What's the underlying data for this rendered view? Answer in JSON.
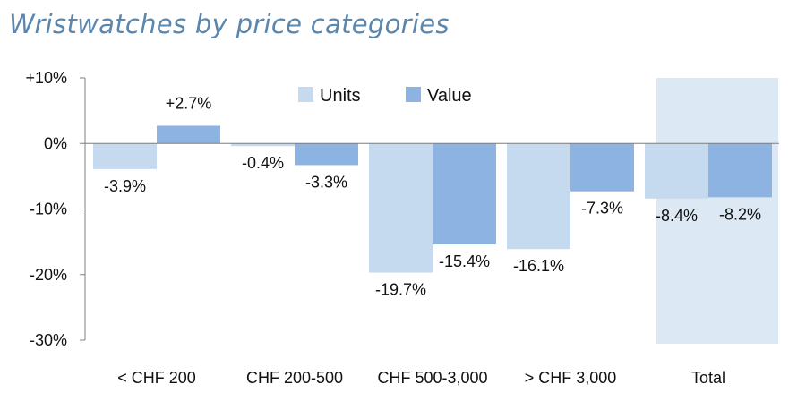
{
  "title": "Wristwatches by price categories",
  "colors": {
    "units": "#c5d9ef",
    "value": "#8db3e2",
    "highlight": "#dce9f5",
    "axis": "#7f7f7f"
  },
  "chart_data": {
    "type": "bar",
    "title": "Wristwatches by price categories",
    "xlabel": "",
    "ylabel": "",
    "categories": [
      "< CHF 200",
      "CHF 200-500",
      "CHF 500-3,000",
      "> CHF 3,000",
      "Total"
    ],
    "series": [
      {
        "name": "Units",
        "values": [
          -3.9,
          -0.4,
          -19.7,
          -16.1,
          -8.4
        ],
        "labels": [
          "-3.9%",
          "-0.4%",
          "-19.7%",
          "-16.1%",
          "-8.4%"
        ]
      },
      {
        "name": "Value",
        "values": [
          2.7,
          -3.3,
          -15.4,
          -7.3,
          -8.2
        ],
        "labels": [
          "+2.7%",
          "-3.3%",
          "-15.4%",
          "-7.3%",
          "-8.2%"
        ]
      }
    ],
    "ylim": [
      -30,
      10
    ],
    "yticks": [
      10,
      0,
      -10,
      -20,
      -30
    ],
    "ytick_labels": [
      "+10%",
      "0%",
      "-10%",
      "-20%",
      "-30%"
    ],
    "legend": "top-center",
    "highlighted_category": "Total",
    "grid": false
  }
}
